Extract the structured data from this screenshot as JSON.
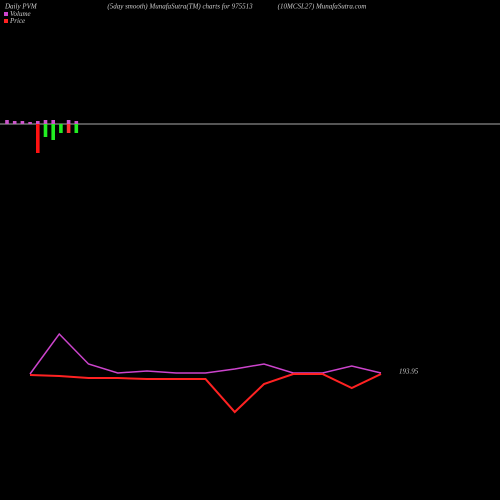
{
  "header": {
    "left": "Daily PVM",
    "center": "(5day smooth) MunafaSutra(TM) charts for 975513",
    "right": "(10MCSL27) MunafaSutra.com"
  },
  "chart_data": [
    {
      "type": "bar",
      "categories": [
        null,
        null,
        null,
        null,
        null,
        null,
        null,
        null,
        null,
        null
      ],
      "ylim": [
        -40,
        40
      ],
      "series": [
        {
          "color": "#cc55cc",
          "values": [
            4,
            3,
            3,
            2,
            3,
            4,
            4,
            0,
            4,
            3
          ]
        },
        {
          "colors": [
            "#ff2222",
            "#ff2222",
            "#ff2222",
            "#ff2222",
            "#ff1111",
            "#22ee22",
            "#22ee22",
            "#22ee22",
            "#ff3333",
            "#22ee22"
          ],
          "values": [
            0,
            0,
            0,
            0,
            -29,
            -13,
            -16,
            -9,
            -9,
            -9
          ]
        }
      ]
    },
    {
      "type": "line",
      "ylim": [
        0,
        100
      ],
      "series": [
        {
          "name": "Volume",
          "color": "#cc44cc",
          "values": [
            46,
            86,
            56,
            47,
            49,
            47,
            47,
            51,
            56,
            47,
            47,
            54,
            47
          ]
        },
        {
          "name": "Price",
          "color": "#ff2222",
          "values": [
            45,
            44,
            42,
            42,
            41,
            41,
            41,
            8,
            36,
            46,
            46,
            32,
            46
          ]
        }
      ],
      "last_label": "193.95"
    }
  ]
}
